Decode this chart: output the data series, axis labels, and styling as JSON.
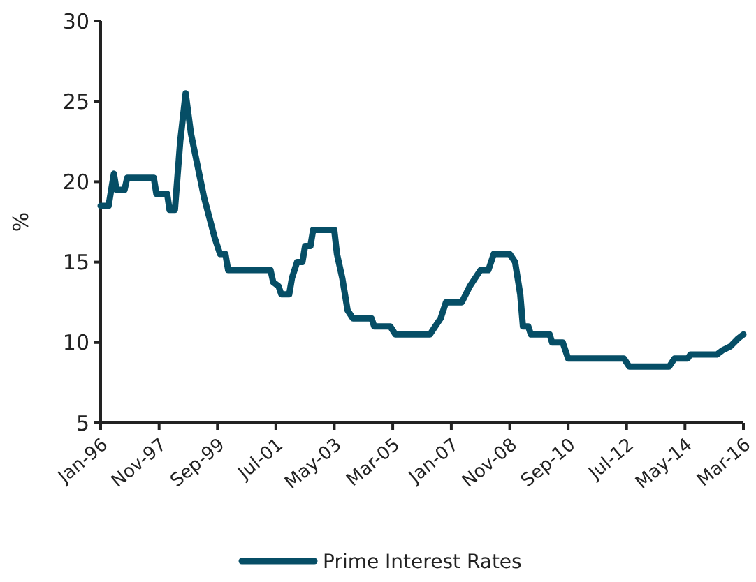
{
  "chart_data": {
    "type": "line",
    "ylabel": "%",
    "ylim": [
      5,
      30
    ],
    "yticks": [
      5,
      10,
      15,
      20,
      25,
      30
    ],
    "xlim": [
      "1996-01",
      "2016-03"
    ],
    "xticks": [
      {
        "value": "1996-01",
        "label": "Jan-96"
      },
      {
        "value": "1997-11",
        "label": "Nov-97"
      },
      {
        "value": "1999-09",
        "label": "Sep-99"
      },
      {
        "value": "2001-07",
        "label": "Jul-01"
      },
      {
        "value": "2003-05",
        "label": "May-03"
      },
      {
        "value": "2005-03",
        "label": "Mar-05"
      },
      {
        "value": "2007-01",
        "label": "Jan-07"
      },
      {
        "value": "2008-11",
        "label": "Nov-08"
      },
      {
        "value": "2010-09",
        "label": "Sep-10"
      },
      {
        "value": "2012-07",
        "label": "Jul-12"
      },
      {
        "value": "2014-05",
        "label": "May-14"
      },
      {
        "value": "2016-03",
        "label": "Mar-16"
      }
    ],
    "x": [
      "1996-01",
      "1996-04",
      "1996-06",
      "1996-07",
      "1996-10",
      "1996-11",
      "1997-09",
      "1997-10",
      "1998-02",
      "1998-03",
      "1998-05",
      "1998-07",
      "1998-09",
      "1998-11",
      "1999-04",
      "1999-06",
      "1999-08",
      "1999-10",
      "1999-12",
      "2000-01",
      "2001-05",
      "2001-06",
      "2001-08",
      "2001-09",
      "2001-12",
      "2002-01",
      "2002-03",
      "2002-05",
      "2002-06",
      "2002-08",
      "2002-09",
      "2003-05",
      "2003-06",
      "2003-08",
      "2003-10",
      "2003-12",
      "2004-07",
      "2004-08",
      "2005-02",
      "2005-04",
      "2006-05",
      "2006-07",
      "2006-09",
      "2006-11",
      "2007-05",
      "2007-08",
      "2007-10",
      "2007-12",
      "2008-03",
      "2008-05",
      "2008-11",
      "2009-01",
      "2009-03",
      "2009-04",
      "2009-06",
      "2009-07",
      "2010-02",
      "2010-03",
      "2010-07",
      "2010-09",
      "2012-06",
      "2012-08",
      "2013-11",
      "2014-01",
      "2014-06",
      "2014-07",
      "2015-05",
      "2015-07",
      "2015-10",
      "2016-01",
      "2016-03"
    ],
    "series": [
      {
        "name": "Prime Interest Rates",
        "color": "#064e66",
        "values": [
          18.5,
          18.5,
          20.5,
          19.5,
          19.5,
          20.25,
          20.25,
          19.25,
          19.25,
          18.25,
          18.25,
          22.5,
          25.5,
          23,
          19,
          17.75,
          16.5,
          15.5,
          15.5,
          14.5,
          14.5,
          13.75,
          13.5,
          13,
          13,
          14,
          15,
          15,
          16,
          16,
          17,
          17,
          15.5,
          14,
          12,
          11.5,
          11.5,
          11,
          11,
          10.5,
          10.5,
          11,
          11.5,
          12.5,
          12.5,
          13.5,
          14,
          14.5,
          14.5,
          15.5,
          15.5,
          15,
          13,
          11,
          11,
          10.5,
          10.5,
          10,
          10,
          9,
          9,
          8.5,
          8.5,
          9,
          9,
          9.25,
          9.25,
          9.5,
          9.75,
          10.25,
          10.5
        ]
      }
    ],
    "legend": "bottom",
    "grid": false
  }
}
